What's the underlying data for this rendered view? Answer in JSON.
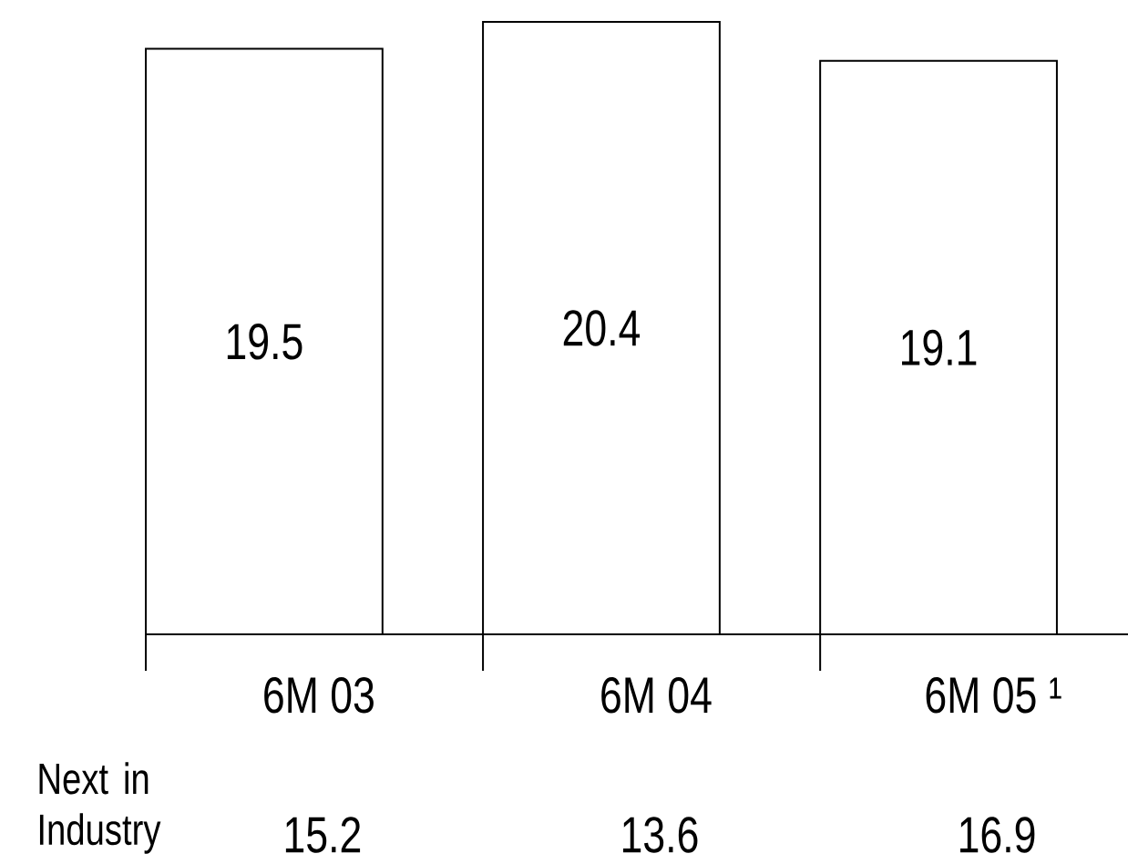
{
  "chart_data": {
    "type": "bar",
    "categories": [
      "6M 03",
      "6M 04",
      "6M 05 ¹"
    ],
    "values": [
      19.5,
      20.4,
      19.1
    ],
    "color": "#ffffff",
    "data_labels": true,
    "annotations": [
      "Next in Industry",
      "15.2",
      "13.6",
      "16.9"
    ]
  }
}
